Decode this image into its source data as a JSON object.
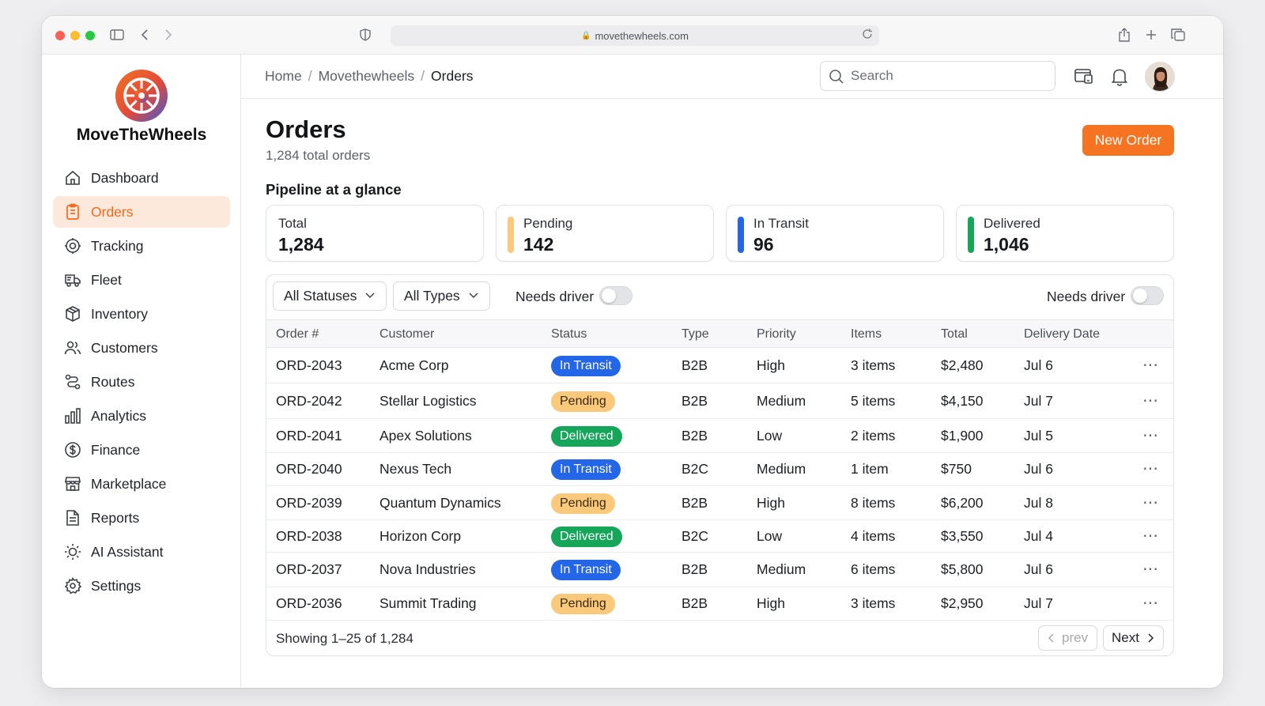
{
  "browser": {
    "url": "movethewheels.com"
  },
  "brand": {
    "name": "MoveTheWheels"
  },
  "sidebar": {
    "items": [
      {
        "label": "Dashboard",
        "icon": "home-icon"
      },
      {
        "label": "Orders",
        "icon": "clipboard-icon",
        "active": true
      },
      {
        "label": "Tracking",
        "icon": "target-icon"
      },
      {
        "label": "Fleet",
        "icon": "truck-icon"
      },
      {
        "label": "Inventory",
        "icon": "box-icon"
      },
      {
        "label": "Customers",
        "icon": "users-icon"
      },
      {
        "label": "Routes",
        "icon": "route-icon"
      },
      {
        "label": "Analytics",
        "icon": "bar-chart-icon"
      },
      {
        "label": "Finance",
        "icon": "dollar-icon"
      },
      {
        "label": "Marketplace",
        "icon": "store-icon"
      },
      {
        "label": "Reports",
        "icon": "document-icon"
      },
      {
        "label": "AI Assistant",
        "icon": "sun-icon"
      },
      {
        "label": "Settings",
        "icon": "gear-icon"
      }
    ]
  },
  "header": {
    "breadcrumb": [
      "Home",
      "Movethewheels",
      "Orders"
    ],
    "search_placeholder": "Search"
  },
  "page": {
    "title": "Orders",
    "subtitle": "1,284 total orders",
    "new_order_label": "New Order",
    "section_title": "Pipeline at a glance"
  },
  "stats": [
    {
      "label": "Total",
      "value": "1,284",
      "color": ""
    },
    {
      "label": "Pending",
      "value": "142",
      "color": "#fbc97c"
    },
    {
      "label": "In Transit",
      "value": "96",
      "color": "#2366e8"
    },
    {
      "label": "Delivered",
      "value": "1,046",
      "color": "#16a65a"
    }
  ],
  "filters": {
    "status": "All Statuses",
    "type": "All Types",
    "needs_driver_left": "Needs driver",
    "needs_driver_right": "Needs driver"
  },
  "table": {
    "columns": [
      "Order #",
      "Customer",
      "Status",
      "Type",
      "Priority",
      "Items",
      "Total",
      "Delivery Date"
    ],
    "rows": [
      {
        "id": "ORD-2043",
        "customer": "Acme Corp",
        "status": "In Transit",
        "type": "B2B",
        "priority": "High",
        "items": "3 items",
        "total": "$2,480",
        "date": "Jul 6"
      },
      {
        "id": "ORD-2042",
        "customer": "Stellar Logistics",
        "status": "Pending",
        "type": "B2B",
        "priority": "Medium",
        "items": "5 items",
        "total": "$4,150",
        "date": "Jul 7"
      },
      {
        "id": "ORD-2041",
        "customer": "Apex Solutions",
        "status": "Delivered",
        "type": "B2B",
        "priority": "Low",
        "items": "2 items",
        "total": "$1,900",
        "date": "Jul 5"
      },
      {
        "id": "ORD-2040",
        "customer": "Nexus Tech",
        "status": "In Transit",
        "type": "B2C",
        "priority": "Medium",
        "items": "1 item",
        "total": "$750",
        "date": "Jul 6"
      },
      {
        "id": "ORD-2039",
        "customer": "Quantum Dynamics",
        "status": "Pending",
        "type": "B2B",
        "priority": "High",
        "items": "8 items",
        "total": "$6,200",
        "date": "Jul 8"
      },
      {
        "id": "ORD-2038",
        "customer": "Horizon Corp",
        "status": "Delivered",
        "type": "B2C",
        "priority": "Low",
        "items": "4 items",
        "total": "$3,550",
        "date": "Jul 4"
      },
      {
        "id": "ORD-2037",
        "customer": "Nova Industries",
        "status": "In Transit",
        "type": "B2B",
        "priority": "Medium",
        "items": "6 items",
        "total": "$5,800",
        "date": "Jul 6"
      },
      {
        "id": "ORD-2036",
        "customer": "Summit Trading",
        "status": "Pending",
        "type": "B2B",
        "priority": "High",
        "items": "3 items",
        "total": "$2,950",
        "date": "Jul 7"
      }
    ],
    "row_menu": "⋯"
  },
  "pagination": {
    "showing": "Showing 1–25 of 1,284",
    "prev": "prev",
    "next": "Next"
  },
  "colors": {
    "accent": "#f57321",
    "transit": "#2366e8",
    "pending": "#fbc97c",
    "delivered": "#16a65a"
  }
}
